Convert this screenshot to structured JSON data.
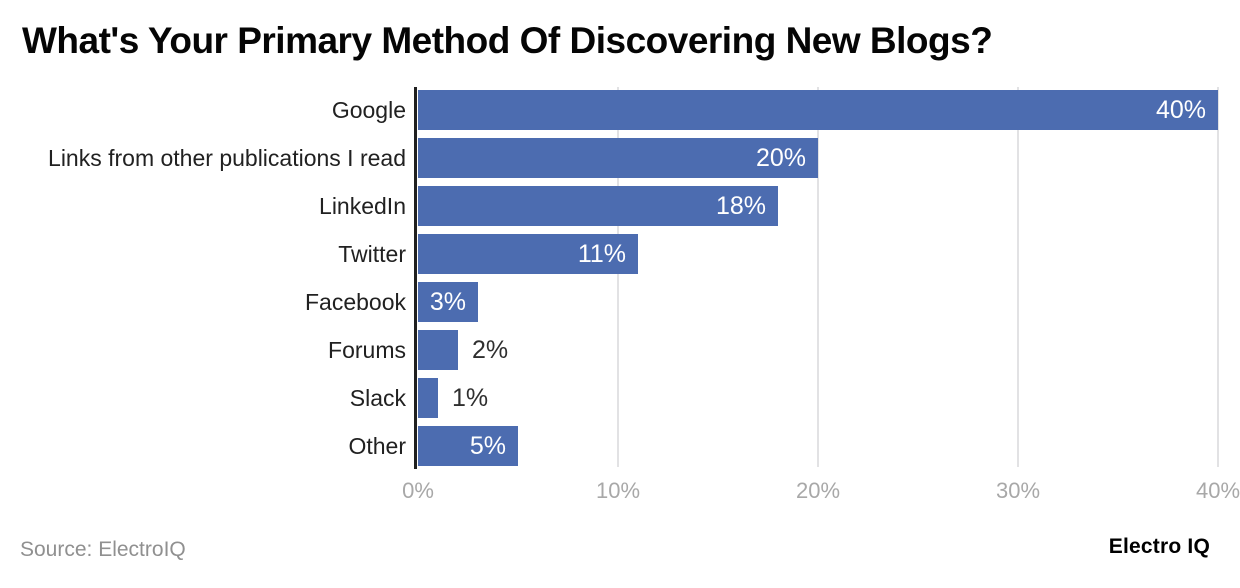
{
  "title": "What's Your Primary Method Of Discovering New Blogs?",
  "footer": {
    "source": "Source: ElectroIQ",
    "brand": "Electro IQ"
  },
  "colors": {
    "bar": "#4c6cb0",
    "bar_label_inside": "#ffffff",
    "bar_label_outside": "#2f2f2f",
    "axis_line": "#202020",
    "gridline": "#e2e2e4",
    "tick_label": "#a8a8a8",
    "category_label": "#212121",
    "title": "#050505",
    "source": "#909090",
    "background": "#ffffff"
  },
  "chart_data": {
    "type": "bar",
    "orientation": "horizontal",
    "title": "What's Your Primary Method Of Discovering New Blogs?",
    "categories": [
      "Google",
      "Links from other publications I read",
      "LinkedIn",
      "Twitter",
      "Facebook",
      "Forums",
      "Slack",
      "Other"
    ],
    "values": [
      40,
      20,
      18,
      11,
      3,
      2,
      1,
      5
    ],
    "value_labels": [
      "40%",
      "20%",
      "18%",
      "11%",
      "3%",
      "2%",
      "1%",
      "5%"
    ],
    "value_label_placement": [
      "inside",
      "inside",
      "inside",
      "inside",
      "inside",
      "outside",
      "outside",
      "inside"
    ],
    "xlabel": "",
    "ylabel": "",
    "xlim": [
      0,
      40
    ],
    "x_ticks": [
      "0%",
      "10%",
      "20%",
      "30%",
      "40%"
    ],
    "x_tick_values": [
      0,
      10,
      20,
      30,
      40
    ],
    "grid": true,
    "legend": false
  }
}
